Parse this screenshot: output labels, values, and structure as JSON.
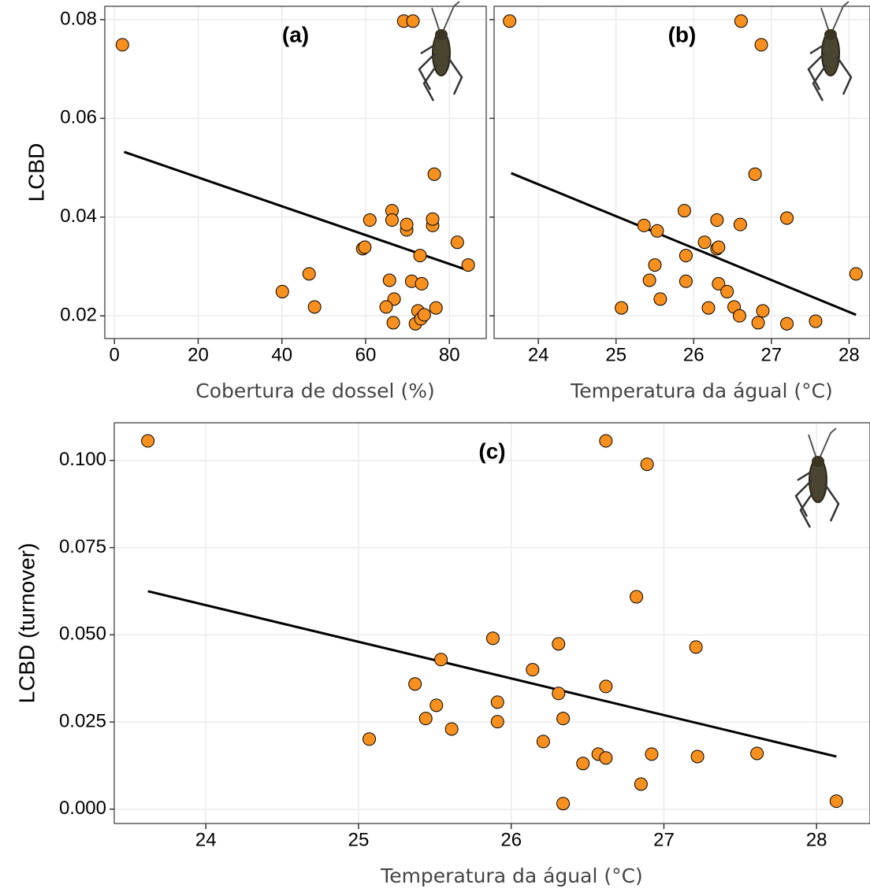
{
  "chart_data": [
    {
      "type": "scatter",
      "title": "(a)",
      "xlabel": "Cobertura de dossel (%)",
      "ylabel": "LCBD",
      "xlim": [
        -2.3,
        88.8
      ],
      "xticks": [
        0,
        20,
        40,
        60,
        80
      ],
      "ylim": [
        0.0154,
        0.0827
      ],
      "yticks": [
        {
          "value": 0.02,
          "label": "0.02"
        },
        {
          "value": 0.04,
          "label": "0.04"
        },
        {
          "value": 0.06,
          "label": "0.06"
        },
        {
          "value": 0.08,
          "label": "0.08"
        }
      ],
      "show_ytick_labels": true,
      "grid": true,
      "color": "#f7901e",
      "x": [
        1.9,
        69.1,
        71.3,
        40.1,
        46.5,
        47.8,
        59.3,
        59.8,
        61.0,
        66.3,
        66.3,
        69.8,
        69.8,
        65.7,
        71.0,
        66.8,
        64.9,
        66.6,
        71.9,
        72.5,
        73.0,
        73.4,
        73.2,
        74.0,
        76.0,
        76.0,
        76.4,
        76.8,
        81.9,
        84.5
      ],
      "values": [
        0.0749,
        0.0797,
        0.0797,
        0.0249,
        0.0285,
        0.0218,
        0.0336,
        0.0339,
        0.0394,
        0.0413,
        0.0394,
        0.0374,
        0.0385,
        0.0272,
        0.027,
        0.0234,
        0.0218,
        0.0186,
        0.0184,
        0.021,
        0.0322,
        0.0265,
        0.0194,
        0.0202,
        0.0383,
        0.0396,
        0.0487,
        0.0216,
        0.0349,
        0.0303
      ],
      "fit": {
        "x": [
          2.3,
          84.5
        ],
        "y": [
          0.0532,
          0.0292
        ]
      }
    },
    {
      "type": "scatter",
      "title": "(b)",
      "xlabel": "Temperatura da águal (°C)",
      "xlim": [
        23.43,
        28.27
      ],
      "xticks": [
        24,
        25,
        26,
        27,
        28
      ],
      "ylim": [
        0.0154,
        0.0827
      ],
      "yticks": [
        {
          "value": 0.02,
          "label": "0.02"
        },
        {
          "value": 0.04,
          "label": "0.04"
        },
        {
          "value": 0.06,
          "label": "0.06"
        },
        {
          "value": 0.08,
          "label": "0.08"
        }
      ],
      "show_ytick_labels": false,
      "grid": true,
      "color": "#f7901e",
      "x": [
        23.63,
        26.61,
        26.87,
        26.79,
        25.88,
        26.3,
        27.2,
        25.36,
        25.53,
        26.6,
        26.14,
        26.3,
        26.32,
        25.9,
        25.5,
        25.43,
        25.9,
        26.32,
        26.43,
        25.57,
        25.07,
        26.19,
        26.52,
        26.59,
        26.89,
        26.83,
        27.2,
        27.57,
        28.09
      ],
      "values": [
        0.0797,
        0.0797,
        0.0749,
        0.0487,
        0.0413,
        0.0394,
        0.0398,
        0.0383,
        0.0372,
        0.0385,
        0.0349,
        0.0336,
        0.0339,
        0.0322,
        0.0303,
        0.0272,
        0.027,
        0.0265,
        0.0249,
        0.0234,
        0.0216,
        0.0216,
        0.0218,
        0.02,
        0.021,
        0.0186,
        0.0184,
        0.0189,
        0.0285
      ],
      "fit": {
        "x": [
          23.65,
          28.09
        ],
        "y": [
          0.0489,
          0.0202
        ]
      }
    },
    {
      "type": "scatter",
      "title": "(c)",
      "xlabel": "Temperatura da águal (°C)",
      "ylabel": "LCBD (turnover)",
      "xlim": [
        23.4,
        28.35
      ],
      "xticks": [
        24,
        25,
        26,
        27,
        28
      ],
      "ylim": [
        -0.0041,
        0.1108
      ],
      "yticks": [
        {
          "value": 0,
          "label": "0.000"
        },
        {
          "value": 0.025,
          "label": "0.025"
        },
        {
          "value": 0.05,
          "label": "0.050"
        },
        {
          "value": 0.075,
          "label": "0.075"
        },
        {
          "value": 0.1,
          "label": "0.100"
        }
      ],
      "show_ytick_labels": true,
      "grid": true,
      "color": "#f7901e",
      "x": [
        23.62,
        26.62,
        26.89,
        26.82,
        25.88,
        26.31,
        27.21,
        25.54,
        26.14,
        25.37,
        26.62,
        26.31,
        25.51,
        25.91,
        25.44,
        26.34,
        25.91,
        25.61,
        25.07,
        26.21,
        26.57,
        26.62,
        26.92,
        27.22,
        27.61,
        26.47,
        26.85,
        26.34,
        28.13
      ],
      "values": [
        0.1056,
        0.1056,
        0.0989,
        0.0609,
        0.049,
        0.0474,
        0.0465,
        0.0429,
        0.04,
        0.0359,
        0.0352,
        0.0332,
        0.0298,
        0.0307,
        0.026,
        0.026,
        0.0251,
        0.023,
        0.0201,
        0.0194,
        0.0158,
        0.0147,
        0.0158,
        0.0151,
        0.016,
        0.0131,
        0.0072,
        0.0016,
        0.0023
      ],
      "fit": {
        "x": [
          23.62,
          28.13
        ],
        "y": [
          0.0625,
          0.0151
        ]
      }
    }
  ]
}
